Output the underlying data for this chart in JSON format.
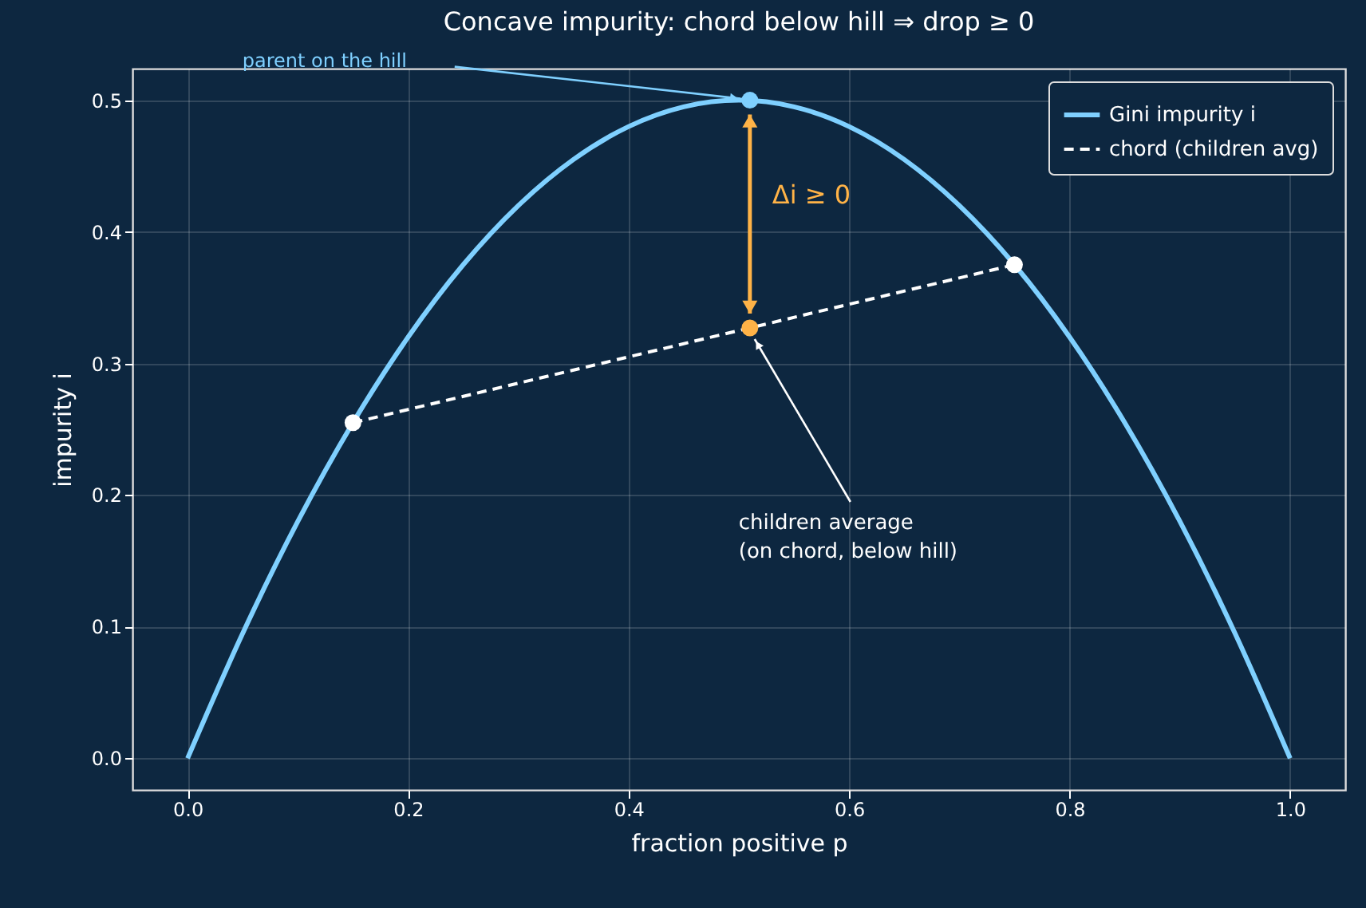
{
  "chart_data": {
    "type": "line",
    "title": "Concave impurity: chord below hill ⇒ drop ≥ 0",
    "xlabel": "fraction positive p",
    "ylabel": "impurity i",
    "xlim": [
      -0.05,
      1.05
    ],
    "ylim": [
      -0.024,
      0.524
    ],
    "xticks": [
      {
        "value": 0,
        "label": "0.0"
      },
      {
        "value": 0.2,
        "label": "0.2"
      },
      {
        "value": 0.4,
        "label": "0.4"
      },
      {
        "value": 0.6,
        "label": "0.6"
      },
      {
        "value": 0.8,
        "label": "0.8"
      },
      {
        "value": 1,
        "label": "1.0"
      }
    ],
    "yticks": [
      {
        "value": 0,
        "label": "0.0"
      },
      {
        "value": 0.1,
        "label": "0.1"
      },
      {
        "value": 0.2,
        "label": "0.2"
      },
      {
        "value": 0.3,
        "label": "0.3"
      },
      {
        "value": 0.4,
        "label": "0.4"
      },
      {
        "value": 0.5,
        "label": "0.5"
      }
    ],
    "grid": true,
    "legend": "top right",
    "series": [
      {
        "name": "Gini impurity i",
        "color": "#7fd0ff",
        "x": [
          0,
          0.05,
          0.1,
          0.15,
          0.2,
          0.25,
          0.3,
          0.35,
          0.4,
          0.45,
          0.5,
          0.55,
          0.6,
          0.65,
          0.7,
          0.75,
          0.8,
          0.85,
          0.9,
          0.95,
          1
        ],
        "values": [
          0,
          0.095,
          0.18,
          0.255,
          0.32,
          0.375,
          0.42,
          0.455,
          0.48,
          0.495,
          0.5,
          0.495,
          0.48,
          0.455,
          0.42,
          0.375,
          0.32,
          0.255,
          0.18,
          0.095,
          0
        ]
      },
      {
        "name": "chord (children avg)",
        "color": "#ffffff",
        "line_style": "dashed",
        "x": [
          0.15,
          0.75
        ],
        "values": [
          0.255,
          0.375
        ]
      },
      {
        "type": "scatter",
        "marker": "circle",
        "color": "#ffffff",
        "x": [
          0.15,
          0.75
        ],
        "values": [
          0.255,
          0.375
        ]
      },
      {
        "type": "scatter",
        "marker": "circle",
        "color": "#7fd0ff",
        "x": [
          0.51
        ],
        "values": [
          0.5
        ]
      },
      {
        "type": "scatter",
        "marker": "circle",
        "color": "#ffb347",
        "x": [
          0.51
        ],
        "values": [
          0.327
        ]
      }
    ],
    "annotations": [
      "parent on the hill",
      "Δi ≥ 0",
      {
        "text": "children average\n(on chord, below hill)",
        "x": 0.51,
        "y": 0.327
      }
    ]
  }
}
